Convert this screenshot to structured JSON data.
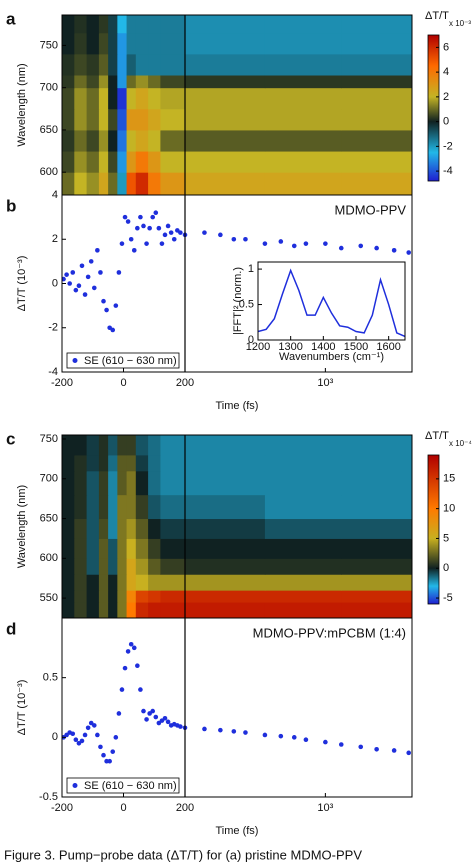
{
  "chart_data": [
    {
      "type": "heatmap",
      "label": "a",
      "ylabel": "Wavelength (nm)",
      "x_edges": [
        -200,
        -160,
        -120,
        -80,
        -50,
        -20,
        10,
        40,
        80,
        120,
        200,
        500,
        1200,
        2700
      ],
      "y_edges": [
        573,
        600,
        625,
        650,
        675,
        700,
        715,
        740,
        765,
        786
      ],
      "z": [
        [
          1,
          2,
          1.5,
          2.5,
          1,
          -2,
          5,
          6,
          4,
          3,
          2.5,
          2.5,
          2.5
        ],
        [
          0.5,
          1.5,
          1,
          2,
          0.5,
          -3,
          3,
          4,
          3,
          2,
          2,
          2,
          2
        ],
        [
          0.3,
          1,
          0.5,
          1.5,
          0,
          -3.5,
          2,
          2.5,
          2,
          1,
          0.8,
          0.8,
          0.8
        ],
        [
          0.5,
          1.5,
          1,
          2,
          0.5,
          -4,
          3,
          3,
          2.5,
          2,
          1.8,
          1.8,
          1.8
        ],
        [
          0.5,
          1.5,
          1,
          2,
          0,
          -4.5,
          2,
          2.5,
          2,
          1.8,
          1.8,
          1.8,
          1.8
        ],
        [
          0.3,
          1,
          0.5,
          1.5,
          0,
          -3,
          1,
          1.5,
          1,
          0.5,
          0.3,
          0.3,
          0.3
        ],
        [
          0.2,
          0.5,
          0.3,
          0.8,
          -0.5,
          -3,
          -1,
          -1.5,
          -1.5,
          -1.5,
          -1.5,
          -1.5,
          -1.5
        ],
        [
          0,
          0.3,
          0,
          0.5,
          -0.5,
          -3,
          -1.5,
          -1.5,
          -1.5,
          -1.5,
          -1.8,
          -1.8,
          -1.8
        ],
        [
          0,
          0.2,
          0,
          0.3,
          -0.5,
          -2.5,
          -1.5,
          -1.5,
          -1.5,
          -1.5,
          -1.8,
          -1.8,
          -1.8
        ]
      ],
      "xlim": [
        -200,
        2700
      ],
      "x_break": 200,
      "ylim": [
        573,
        786
      ],
      "yticks": [
        600,
        650,
        700,
        750
      ],
      "colorbar_title": "ΔT/T",
      "colorbar_unit": "x 10⁻³",
      "zlim": [
        -4.8,
        7
      ],
      "zticks": [
        -4,
        -2,
        0,
        2,
        4,
        6
      ],
      "colorscale": [
        [
          -4.8,
          "#1f1fd0"
        ],
        [
          -2.5,
          "#22b8e8"
        ],
        [
          0,
          "#102222"
        ],
        [
          2,
          "#c4b424"
        ],
        [
          4.5,
          "#ff6a00"
        ],
        [
          7,
          "#b00000"
        ]
      ]
    },
    {
      "type": "scatter",
      "label": "b",
      "ylabel": "ΔT/T (10⁻³)",
      "annotation": "MDMO-PPV",
      "x": [
        -195,
        -185,
        -175,
        -165,
        -155,
        -145,
        -135,
        -125,
        -115,
        -105,
        -95,
        -85,
        -75,
        -65,
        -55,
        -45,
        -35,
        -25,
        -15,
        -5,
        5,
        15,
        25,
        35,
        45,
        55,
        65,
        75,
        85,
        95,
        105,
        115,
        125,
        135,
        145,
        155,
        165,
        175,
        185,
        200,
        250,
        300,
        350,
        400,
        500,
        600,
        700,
        800,
        1000,
        1200,
        1500,
        1800,
        2200,
        2600
      ],
      "series": [
        {
          "name": "SE (610 − 630 nm)",
          "color": "#1f2fdc",
          "values": [
            0.2,
            0.4,
            0,
            0.5,
            -0.3,
            -0.1,
            0.8,
            -0.5,
            0.3,
            1.0,
            -0.2,
            1.5,
            0.5,
            -0.8,
            -1.2,
            -2.0,
            -2.1,
            -1.0,
            0.5,
            1.8,
            3.0,
            2.8,
            2.0,
            1.5,
            2.5,
            3.0,
            2.6,
            1.8,
            2.5,
            3.0,
            3.2,
            2.5,
            1.8,
            2.2,
            2.6,
            2.3,
            2.0,
            2.4,
            2.3,
            2.2,
            2.3,
            2.2,
            2.0,
            2.0,
            1.8,
            1.9,
            1.7,
            1.8,
            1.8,
            1.6,
            1.7,
            1.6,
            1.5,
            1.4
          ]
        }
      ],
      "xlim": [
        -200,
        2700
      ],
      "x_break": 200,
      "xlabel": "Time (fs)",
      "xticks": [
        -200,
        0,
        200,
        {
          "value": 1000,
          "label": "10³"
        }
      ],
      "ylim": [
        -4,
        4
      ],
      "yticks": [
        -4,
        -2,
        0,
        2,
        4
      ],
      "legend": "lower left"
    },
    {
      "type": "line",
      "ylabel": "|FFT|² (norm.)",
      "xlabel": "Wavenumbers (cm⁻¹)",
      "x": [
        1200,
        1225,
        1250,
        1275,
        1300,
        1325,
        1350,
        1375,
        1400,
        1425,
        1450,
        1475,
        1500,
        1525,
        1550,
        1575,
        1600,
        1625,
        1650
      ],
      "series": [
        {
          "color": "#1f2fdc",
          "values": [
            0.12,
            0.15,
            0.3,
            0.65,
            0.98,
            0.7,
            0.35,
            0.35,
            0.6,
            0.38,
            0.2,
            0.18,
            0.12,
            0.1,
            0.35,
            0.85,
            0.5,
            0.1,
            0.05
          ]
        }
      ],
      "xlim": [
        1200,
        1650
      ],
      "xticks": [
        1200,
        1300,
        1400,
        1500,
        1600
      ],
      "ylim": [
        0,
        1.1
      ],
      "yticks": [
        0,
        0.5,
        1
      ]
    },
    {
      "type": "heatmap",
      "label": "c",
      "ylabel": "Wavelength (nm)",
      "x_edges": [
        -200,
        -160,
        -120,
        -80,
        -50,
        -20,
        10,
        40,
        80,
        120,
        200,
        500,
        1200,
        2700
      ],
      "y_edges": [
        525,
        545,
        560,
        580,
        600,
        625,
        650,
        680,
        710,
        730,
        755
      ],
      "z": [
        [
          0,
          1,
          0,
          2,
          0,
          3,
          10,
          16,
          17,
          17,
          17,
          17,
          17
        ],
        [
          0,
          1,
          0,
          2,
          0,
          3,
          9,
          14,
          15,
          16,
          16,
          16,
          16
        ],
        [
          0,
          1,
          0,
          2,
          0,
          3,
          6,
          5,
          4,
          4,
          4,
          4,
          4
        ],
        [
          0,
          1,
          -1,
          2,
          -1,
          3,
          6,
          4,
          2,
          1,
          0.5,
          0.5,
          0.5
        ],
        [
          0,
          1,
          -1,
          2,
          -1,
          3,
          5,
          3,
          1,
          0,
          0,
          0,
          0
        ],
        [
          0,
          1,
          -1,
          1.5,
          -2,
          3,
          4,
          2,
          0,
          -0.5,
          -0.5,
          -1,
          -1
        ],
        [
          0,
          0.5,
          -1,
          1,
          -2,
          3,
          3,
          1,
          -1,
          -1.5,
          -1.5,
          -2,
          -2
        ],
        [
          0,
          0.5,
          -1,
          1,
          -2,
          2,
          3,
          0,
          -1.5,
          -2,
          -2,
          -2,
          -2
        ],
        [
          0,
          0.5,
          -0.5,
          0.5,
          -1.5,
          2,
          2,
          -0.5,
          -1.5,
          -2,
          -2,
          -2,
          -2
        ],
        [
          0,
          0,
          -0.5,
          0.5,
          -1,
          1,
          1,
          -1,
          -1.5,
          -2,
          -2,
          -2,
          -2
        ]
      ],
      "xlim": [
        -200,
        2700
      ],
      "x_break": 200,
      "ylim": [
        525,
        755
      ],
      "yticks": [
        550,
        600,
        650,
        700,
        750
      ],
      "colorbar_title": "ΔT/T",
      "colorbar_unit": "x 10⁻⁴",
      "zlim": [
        -6,
        19
      ],
      "zticks": [
        -5,
        0,
        5,
        10,
        15
      ],
      "colorscale": [
        [
          -6,
          "#2020d0"
        ],
        [
          -3,
          "#22b8e8"
        ],
        [
          0,
          "#102222"
        ],
        [
          5,
          "#c8b020"
        ],
        [
          10,
          "#ff7a00"
        ],
        [
          19,
          "#b00000"
        ]
      ]
    },
    {
      "type": "scatter",
      "label": "d",
      "ylabel": "ΔT/T (10⁻³)",
      "annotation": "MDMO-PPV:mPCBM (1:4)",
      "x": [
        -195,
        -185,
        -175,
        -165,
        -155,
        -145,
        -135,
        -125,
        -115,
        -105,
        -95,
        -85,
        -75,
        -65,
        -55,
        -45,
        -35,
        -25,
        -15,
        -5,
        5,
        15,
        25,
        35,
        45,
        55,
        65,
        75,
        85,
        95,
        105,
        115,
        125,
        135,
        145,
        155,
        165,
        175,
        185,
        200,
        250,
        300,
        350,
        400,
        500,
        600,
        700,
        800,
        1000,
        1200,
        1500,
        1800,
        2200,
        2600
      ],
      "series": [
        {
          "name": "SE (610 − 630 nm)",
          "color": "#1f2fdc",
          "values": [
            0.0,
            0.02,
            0.04,
            0.03,
            -0.02,
            -0.05,
            -0.03,
            0.02,
            0.08,
            0.12,
            0.1,
            0.02,
            -0.08,
            -0.15,
            -0.2,
            -0.2,
            -0.12,
            0.0,
            0.2,
            0.4,
            0.58,
            0.72,
            0.78,
            0.75,
            0.6,
            0.4,
            0.22,
            0.15,
            0.2,
            0.22,
            0.17,
            0.12,
            0.14,
            0.16,
            0.13,
            0.1,
            0.11,
            0.1,
            0.09,
            0.08,
            0.07,
            0.06,
            0.05,
            0.04,
            0.02,
            0.01,
            0.0,
            -0.02,
            -0.04,
            -0.06,
            -0.08,
            -0.1,
            -0.11,
            -0.13
          ]
        }
      ],
      "xlim": [
        -200,
        2700
      ],
      "x_break": 200,
      "xlabel": "Time (fs)",
      "xticks": [
        -200,
        0,
        200,
        {
          "value": 1000,
          "label": "10³"
        }
      ],
      "ylim": [
        -0.5,
        1.0
      ],
      "yticks": [
        -0.5,
        0,
        0.5
      ],
      "legend": "lower left"
    }
  ],
  "caption": "Figure 3. Pump−probe data (ΔT/T) for (a) pristine MDMO-PPV"
}
